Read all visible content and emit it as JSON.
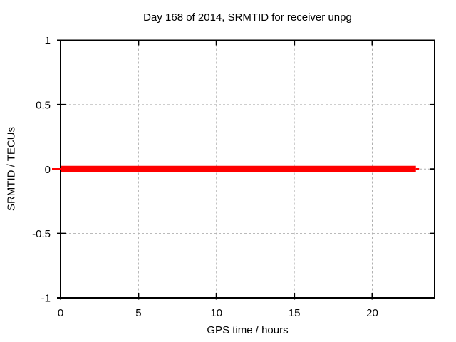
{
  "style": {
    "background": "#ffffff",
    "text_color": "#000000",
    "border_color": "#000000",
    "grid_color": "#b0b0b0",
    "series_color": "#ff0000"
  },
  "chart_data": {
    "type": "line",
    "title": "Day 168 of 2014, SRMTID for receiver unpg",
    "xlabel": "GPS time / hours",
    "ylabel": "SRMTID / TECUs",
    "xlim": [
      0,
      24
    ],
    "ylim": [
      -1,
      1
    ],
    "xticks": [
      0,
      5,
      10,
      15,
      20
    ],
    "yticks": [
      -1,
      -0.5,
      0,
      0.5,
      1
    ],
    "grid": "dashed gray at interior ticks",
    "legend": "none",
    "series": [
      {
        "name": "SRMTID",
        "color": "#ff0000",
        "description": "constant zero value across the day",
        "x": [
          0,
          22.8
        ],
        "y": [
          0,
          0
        ]
      }
    ]
  }
}
